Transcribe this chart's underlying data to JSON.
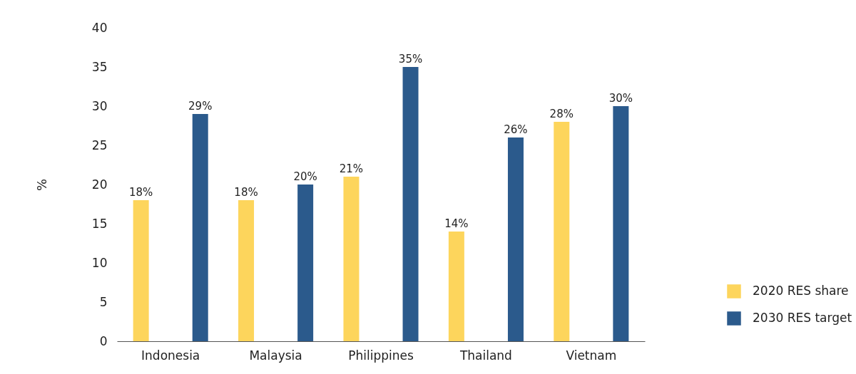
{
  "chart_data": {
    "type": "bar",
    "ylabel": "%",
    "categories": [
      "Indonesia",
      "Malaysia",
      "Philippines",
      "Thailand",
      "Vietnam"
    ],
    "series": [
      {
        "name": "2020 RES share",
        "color": "#fdd55c",
        "values": [
          18,
          18,
          21,
          14,
          28
        ],
        "value_labels": [
          "18%",
          "18%",
          "21%",
          "14%",
          "28%"
        ]
      },
      {
        "name": "2030 RES target",
        "color": "#2b5a8c",
        "values": [
          29,
          20,
          35,
          26,
          30
        ],
        "value_labels": [
          "29%",
          "20%",
          "35%",
          "26%",
          "30%"
        ]
      }
    ],
    "ylim": [
      0,
      40
    ],
    "yticks": [
      0,
      5,
      10,
      15,
      20,
      25,
      30,
      35,
      40
    ],
    "grid": false,
    "legend": "bottom right"
  }
}
